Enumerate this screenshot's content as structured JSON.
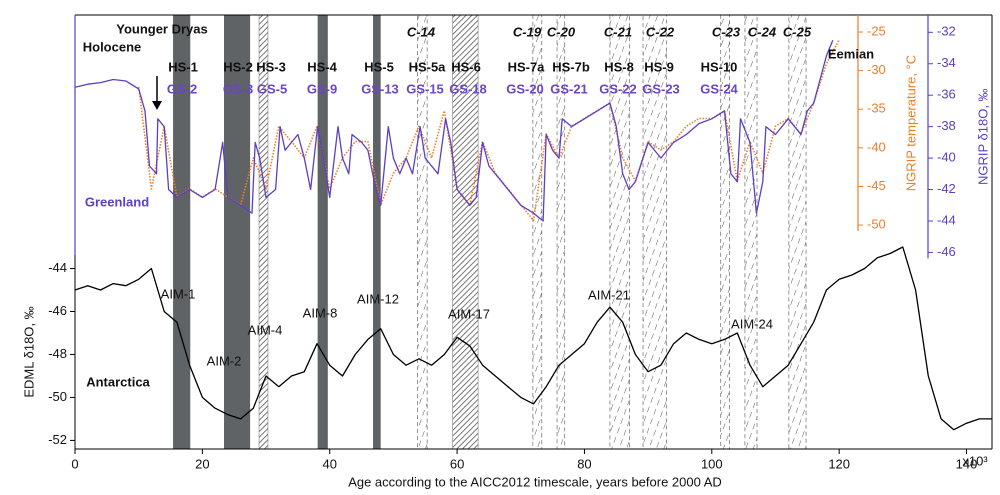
{
  "chart_data": {
    "type": "line",
    "xlabel": "Age according to the AICC2012 timescale, years before 2000 AD",
    "x_multiplier": "x10³",
    "ylabel": "EDML δ18O, ‰",
    "y2label": "NGRIP δ18O, ‰",
    "y3label": "NGRIP temperature, °C",
    "xlim": [
      0,
      144
    ],
    "xticks": [
      0,
      20,
      40,
      60,
      80,
      100,
      120,
      140
    ],
    "ylim": [
      -52.4,
      -32.2
    ],
    "yticks": [
      -44,
      -46,
      -48,
      -50,
      -52
    ],
    "y2lim": [
      -58.5,
      -30.9
    ],
    "y2ticks": [
      -32,
      -34,
      -36,
      -38,
      -40,
      -42,
      -44,
      -46
    ],
    "y3lim": [
      -79,
      -22.8
    ],
    "y3ticks": [
      -25,
      -30,
      -35,
      -40,
      -45,
      -50
    ],
    "y2color": "#5b3fc4",
    "y3color": "#f07d2a",
    "series": [
      {
        "name": "EDML δ18O",
        "color": "#000000",
        "axis": "y",
        "dash": "solid",
        "x": [
          0,
          2,
          4,
          6,
          8,
          10,
          12,
          14,
          16,
          18,
          20,
          22,
          24,
          26,
          28,
          30,
          32,
          34,
          36,
          38,
          40,
          42,
          44,
          46,
          48,
          50,
          52,
          54,
          56,
          58,
          60,
          62,
          64,
          66,
          68,
          70,
          72,
          74,
          76,
          78,
          80,
          82,
          84,
          86,
          88,
          90,
          92,
          94,
          96,
          98,
          100,
          102,
          104,
          106,
          108,
          110,
          112,
          114,
          116,
          118,
          120,
          122,
          124,
          126,
          128,
          130,
          132,
          134,
          136,
          138,
          140,
          142,
          144
        ],
        "values": [
          -45,
          -44.8,
          -45,
          -44.7,
          -44.8,
          -44.5,
          -44,
          -46,
          -46.5,
          -48.5,
          -50,
          -50.5,
          -50.8,
          -51,
          -50.5,
          -49,
          -49.5,
          -49,
          -48.8,
          -47.5,
          -48.5,
          -49,
          -48,
          -47.3,
          -46.8,
          -48,
          -48.5,
          -48.2,
          -48.5,
          -48,
          -47.2,
          -47.6,
          -48.5,
          -49,
          -49.5,
          -50,
          -50.3,
          -49.5,
          -48.5,
          -48,
          -47.5,
          -46.5,
          -45.8,
          -46.5,
          -48,
          -48.8,
          -48.5,
          -47.5,
          -47,
          -47.3,
          -47.5,
          -47.3,
          -47,
          -48.5,
          -49.5,
          -49,
          -48.5,
          -47.5,
          -46.5,
          -45,
          -44.5,
          -44.3,
          -44,
          -43.5,
          -43.3,
          -43,
          -45,
          -49,
          -51,
          -51.5,
          -51.2,
          -51,
          -51
        ]
      },
      {
        "name": "NGRIP temperature",
        "color": "#f07d2a",
        "axis": "y3",
        "dash": "dotted",
        "x": [
          10,
          12,
          14,
          16,
          18,
          20,
          22,
          24,
          26,
          28,
          30,
          32,
          34,
          36,
          38,
          40,
          42,
          44,
          46,
          48,
          50,
          52,
          54,
          56,
          58,
          60,
          62,
          64,
          66,
          68,
          70,
          72,
          74,
          76,
          78,
          80,
          82,
          84,
          86,
          88,
          90,
          92,
          94,
          96,
          98,
          100,
          102,
          104,
          106,
          108,
          110,
          112,
          114,
          116,
          118,
          120
        ],
        "values": [
          -32.1,
          -45.3,
          -37.2,
          -46.4,
          -45.3,
          -46.4,
          -45.3,
          -46.4,
          -47.4,
          -41.3,
          -45.3,
          -37.2,
          -39.2,
          -41.3,
          -37.2,
          -45.3,
          -41.3,
          -39.2,
          -39.2,
          -47.4,
          -43.3,
          -41.3,
          -37.2,
          -41.3,
          -35.2,
          -45.3,
          -47.4,
          -39.2,
          -43.3,
          -45.3,
          -47.4,
          -49.4,
          -38.2,
          -41.3,
          -37.2,
          -36.2,
          -35.2,
          -34.2,
          -41.3,
          -44.3,
          -39.2,
          -40.3,
          -39.2,
          -37.2,
          -36.2,
          -36.2,
          -35.2,
          -44.3,
          -39.2,
          -43.3,
          -37.2,
          -36.2,
          -38.2,
          -34.2,
          -29.1,
          -26
        ]
      },
      {
        "name": "NGRIP δ18O",
        "color": "#5b3fc4",
        "axis": "y2",
        "dash": "solid",
        "x": [
          0,
          2,
          4,
          6,
          8,
          10,
          11,
          11.7,
          12.8,
          13,
          14,
          14.7,
          16,
          18,
          20,
          22,
          23.2,
          24,
          26,
          27.8,
          28.3,
          29,
          30,
          31.5,
          32.2,
          33,
          34,
          35,
          36,
          37,
          38.1,
          39,
          40,
          41.3,
          42,
          43,
          43.5,
          45,
          46,
          47,
          48,
          49.2,
          50,
          51,
          52,
          53,
          54.2,
          55,
          56,
          57,
          58.2,
          59,
          60,
          62,
          63,
          64,
          65,
          66,
          68,
          70,
          72,
          73.5,
          74,
          75,
          76,
          76.5,
          78,
          80,
          82,
          84,
          85,
          86,
          87,
          88,
          90,
          92,
          94,
          96,
          98,
          100,
          102,
          103,
          104,
          104.5,
          106,
          107,
          108,
          108.5,
          110,
          112,
          114,
          115,
          116,
          117,
          118,
          119
        ],
        "values": [
          -35.5,
          -35.3,
          -35.2,
          -35,
          -35.1,
          -35.6,
          -37,
          -40.5,
          -41,
          -37.5,
          -38,
          -42,
          -42.5,
          -42,
          -42.5,
          -42,
          -39,
          -42.5,
          -43,
          -43.5,
          -39,
          -40,
          -42.5,
          -42,
          -38,
          -39.5,
          -39,
          -38.5,
          -40,
          -42,
          -38,
          -40,
          -42.5,
          -38,
          -40,
          -41,
          -38.5,
          -39,
          -39.5,
          -41.5,
          -43,
          -38,
          -40,
          -41,
          -40,
          -41,
          -38,
          -40,
          -40.5,
          -41,
          -37.5,
          -39,
          -42,
          -43,
          -42.5,
          -39,
          -40.5,
          -41,
          -42,
          -43,
          -43.5,
          -44,
          -38.5,
          -39.5,
          -40,
          -37.5,
          -38,
          -37.5,
          -37,
          -36.5,
          -38,
          -41,
          -42,
          -41.5,
          -39,
          -40,
          -39,
          -38.5,
          -37.8,
          -37.5,
          -37,
          -41,
          -41.5,
          -37.5,
          -39,
          -43.5,
          -41.5,
          -38,
          -38.5,
          -37.5,
          -38.5,
          -37,
          -36.5,
          -35,
          -33.5,
          -32.5
        ]
      }
    ],
    "bands": [
      {
        "start": 15.4,
        "end": 18.1,
        "style": "solid"
      },
      {
        "start": 23.4,
        "end": 27.5,
        "style": "solid"
      },
      {
        "start": 28.9,
        "end": 30.3,
        "style": "hatch"
      },
      {
        "start": 38.1,
        "end": 39.7,
        "style": "solid"
      },
      {
        "start": 46.8,
        "end": 48,
        "style": "solid"
      },
      {
        "start": 53.8,
        "end": 55.3,
        "style": "dashed"
      },
      {
        "start": 59.3,
        "end": 63.3,
        "style": "hatch"
      },
      {
        "start": 71.9,
        "end": 73.3,
        "style": "dashed"
      },
      {
        "start": 75.7,
        "end": 76.9,
        "style": "dashed"
      },
      {
        "start": 84,
        "end": 87.1,
        "style": "dashed"
      },
      {
        "start": 89.2,
        "end": 92.9,
        "style": "dashed"
      },
      {
        "start": 101.4,
        "end": 102.8,
        "style": "dashed"
      },
      {
        "start": 105.2,
        "end": 107.1,
        "style": "dashed"
      },
      {
        "start": 112.1,
        "end": 114.8,
        "style": "dashed"
      }
    ],
    "event_labels": [
      "Younger Dryas",
      "Holocene",
      "HS-1",
      "HS-2",
      "HS-3",
      "HS-4",
      "HS-5",
      "HS-5a",
      "HS-6",
      "HS-7a",
      "HS-7b",
      "HS-8",
      "HS-9",
      "HS-10",
      "Eemian"
    ],
    "cold_event_labels": [
      "C-14",
      "C-19",
      "C-20",
      "C-21",
      "C-22",
      "C-23",
      "C-24",
      "C-25"
    ],
    "stadial_labels": [
      "GS-2",
      "GS-3",
      "GS-5",
      "GS-9",
      "GS-13",
      "GS-15",
      "GS-18",
      "GS-20",
      "GS-21",
      "GS-22",
      "GS-23",
      "GS-24"
    ],
    "aim_labels": [
      "AIM-1",
      "AIM-2",
      "AIM-4",
      "AIM-8",
      "AIM-12",
      "AIM-17",
      "AIM-21",
      "AIM-24"
    ],
    "region_labels": [
      "Greenland",
      "Antarctica"
    ]
  }
}
